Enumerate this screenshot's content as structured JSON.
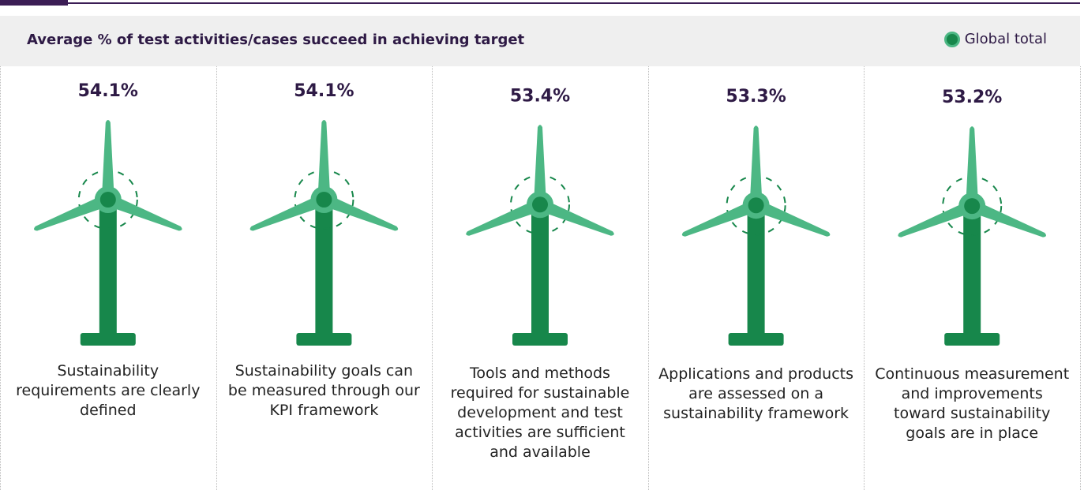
{
  "chart_data": {
    "type": "pictogram",
    "title": "Average % of test activities/cases succeed in achieving target",
    "categories": [
      "Sustainability requirements are clearly defined",
      "Sustainability goals can be measured through our KPI framework",
      "Tools and methods required for sustainable development and test activities are sufficient and available",
      "Applications and products are assessed on a sustainability framework",
      "Continuous measurement and improvements toward sustainability goals are in place"
    ],
    "series": [
      {
        "name": "Global total",
        "color": "#17874b",
        "values": [
          54.1,
          54.1,
          53.4,
          53.3,
          53.2
        ],
        "value_labels": [
          "54.1%",
          "54.1%",
          "53.4%",
          "53.3%",
          "53.2%"
        ]
      }
    ],
    "blade_color": "#4cb784",
    "legend": "top-right"
  }
}
